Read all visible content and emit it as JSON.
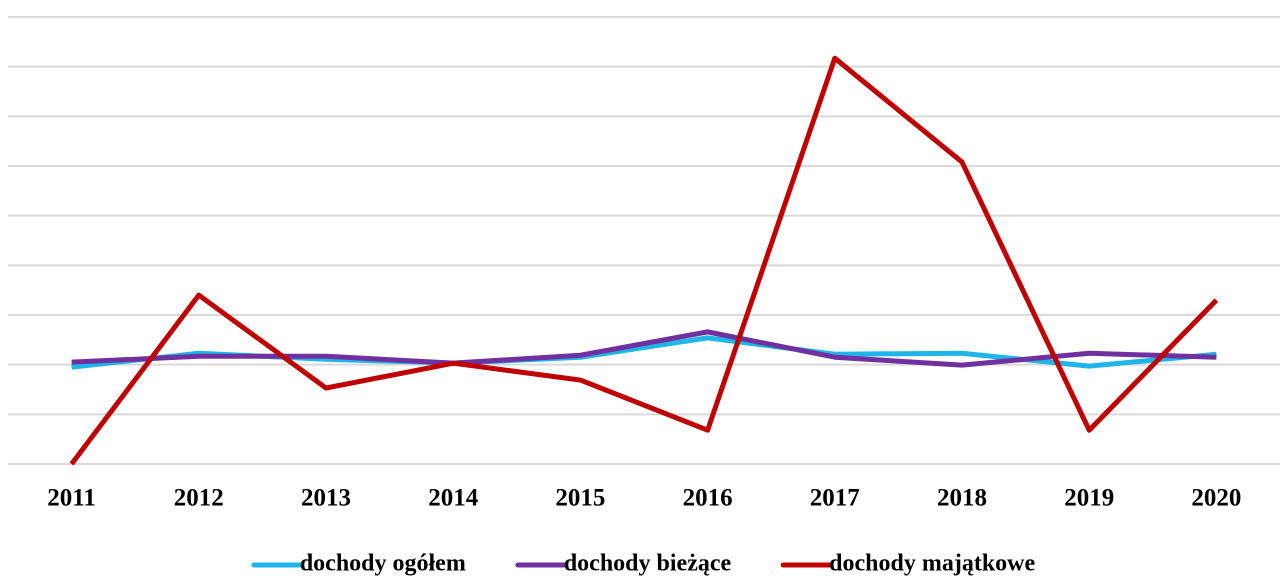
{
  "chart_data": {
    "type": "line",
    "categories": [
      "2011",
      "2012",
      "2013",
      "2014",
      "2015",
      "2016",
      "2017",
      "2018",
      "2019",
      "2020"
    ],
    "series": [
      {
        "name": "dochody ogółem",
        "color": "#1fb5e8",
        "values": [
          1.95,
          2.23,
          2.11,
          2.03,
          2.15,
          2.54,
          2.21,
          2.23,
          1.97,
          2.21
        ]
      },
      {
        "name": "dochody bieżące",
        "color": "#7030a0",
        "values": [
          2.05,
          2.17,
          2.17,
          2.03,
          2.19,
          2.66,
          2.15,
          1.99,
          2.23,
          2.15
        ]
      },
      {
        "name": "dochody majątkowe",
        "color": "#c00000",
        "values": [
          0,
          3.4,
          1.53,
          2.03,
          1.69,
          0.68,
          8.17,
          6.08,
          0.68,
          3.3
        ]
      }
    ],
    "ylim": [
      0,
      9
    ],
    "yticks": [
      0,
      1,
      2,
      3,
      4,
      5,
      6,
      7,
      8,
      9
    ],
    "grid": true,
    "legend": "bottom"
  }
}
